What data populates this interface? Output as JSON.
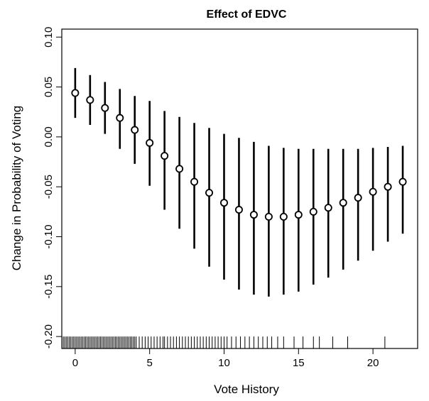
{
  "chart_data": {
    "type": "scatter",
    "title": "Effect of EDVC",
    "xlabel": "Vote History",
    "ylabel": "Change in Probability of Voting",
    "xlim": [
      -0.9,
      23.0
    ],
    "ylim": [
      -0.212,
      0.108
    ],
    "x_ticks": [
      0,
      5,
      10,
      15,
      20
    ],
    "x_tick_labels": [
      "0",
      "5",
      "10",
      "15",
      "20"
    ],
    "y_ticks": [
      0.1,
      0.05,
      0.0,
      -0.05,
      -0.1,
      -0.15,
      -0.2
    ],
    "y_tick_labels": [
      "0.10",
      "0.05",
      "0.00",
      "-0.05",
      "-0.10",
      "-0.15",
      "-0.20"
    ],
    "grid": false,
    "legend": "none",
    "point_style": "open-circle",
    "error_bars": "vertical",
    "points": [
      {
        "x": 0,
        "y": 0.044,
        "lower": 0.019,
        "upper": 0.069
      },
      {
        "x": 1,
        "y": 0.037,
        "lower": 0.012,
        "upper": 0.062
      },
      {
        "x": 2,
        "y": 0.029,
        "lower": 0.003,
        "upper": 0.055
      },
      {
        "x": 3,
        "y": 0.019,
        "lower": -0.012,
        "upper": 0.048
      },
      {
        "x": 4,
        "y": 0.007,
        "lower": -0.027,
        "upper": 0.041
      },
      {
        "x": 5,
        "y": -0.006,
        "lower": -0.049,
        "upper": 0.036
      },
      {
        "x": 6,
        "y": -0.019,
        "lower": -0.073,
        "upper": 0.026
      },
      {
        "x": 7,
        "y": -0.032,
        "lower": -0.092,
        "upper": 0.02
      },
      {
        "x": 8,
        "y": -0.045,
        "lower": -0.112,
        "upper": 0.014
      },
      {
        "x": 9,
        "y": -0.056,
        "lower": -0.13,
        "upper": 0.009
      },
      {
        "x": 10,
        "y": -0.066,
        "lower": -0.143,
        "upper": 0.003
      },
      {
        "x": 11,
        "y": -0.073,
        "lower": -0.153,
        "upper": -0.001
      },
      {
        "x": 12,
        "y": -0.078,
        "lower": -0.158,
        "upper": -0.005
      },
      {
        "x": 13,
        "y": -0.08,
        "lower": -0.16,
        "upper": -0.009
      },
      {
        "x": 14,
        "y": -0.08,
        "lower": -0.158,
        "upper": -0.011
      },
      {
        "x": 15,
        "y": -0.078,
        "lower": -0.155,
        "upper": -0.012
      },
      {
        "x": 16,
        "y": -0.075,
        "lower": -0.148,
        "upper": -0.012
      },
      {
        "x": 17,
        "y": -0.071,
        "lower": -0.141,
        "upper": -0.012
      },
      {
        "x": 18,
        "y": -0.066,
        "lower": -0.133,
        "upper": -0.012
      },
      {
        "x": 19,
        "y": -0.061,
        "lower": -0.124,
        "upper": -0.012
      },
      {
        "x": 20,
        "y": -0.055,
        "lower": -0.114,
        "upper": -0.011
      },
      {
        "x": 21,
        "y": -0.05,
        "lower": -0.105,
        "upper": -0.01
      },
      {
        "x": 22,
        "y": -0.045,
        "lower": -0.097,
        "upper": -0.009
      }
    ],
    "rug": [
      -0.9,
      -0.8,
      -0.7,
      -0.6,
      -0.5,
      -0.4,
      -0.3,
      -0.2,
      -0.1,
      0.0,
      0.1,
      0.2,
      0.3,
      0.4,
      0.5,
      0.6,
      0.7,
      0.8,
      0.9,
      1.0,
      1.1,
      1.2,
      1.3,
      1.4,
      1.5,
      1.6,
      1.7,
      1.8,
      1.9,
      2.0,
      2.1,
      2.2,
      2.3,
      2.4,
      2.5,
      2.6,
      2.7,
      2.8,
      2.9,
      3.0,
      3.1,
      3.2,
      3.3,
      3.4,
      3.5,
      3.6,
      3.7,
      3.8,
      3.9,
      4.0,
      4.1,
      4.3,
      4.5,
      4.7,
      4.9,
      5.1,
      5.3,
      5.5,
      5.7,
      5.9,
      6.0,
      6.2,
      6.4,
      6.6,
      6.8,
      7.0,
      7.2,
      7.4,
      7.6,
      7.8,
      8.0,
      8.2,
      8.4,
      8.6,
      8.8,
      9.0,
      9.2,
      9.4,
      9.6,
      9.8,
      10.0,
      10.2,
      10.5,
      10.8,
      11.1,
      11.4,
      11.7,
      12.0,
      12.3,
      12.6,
      12.9,
      13.2,
      13.6,
      14.0,
      14.7,
      15.3,
      16.0,
      16.4,
      17.3,
      18.3,
      20.8
    ]
  }
}
